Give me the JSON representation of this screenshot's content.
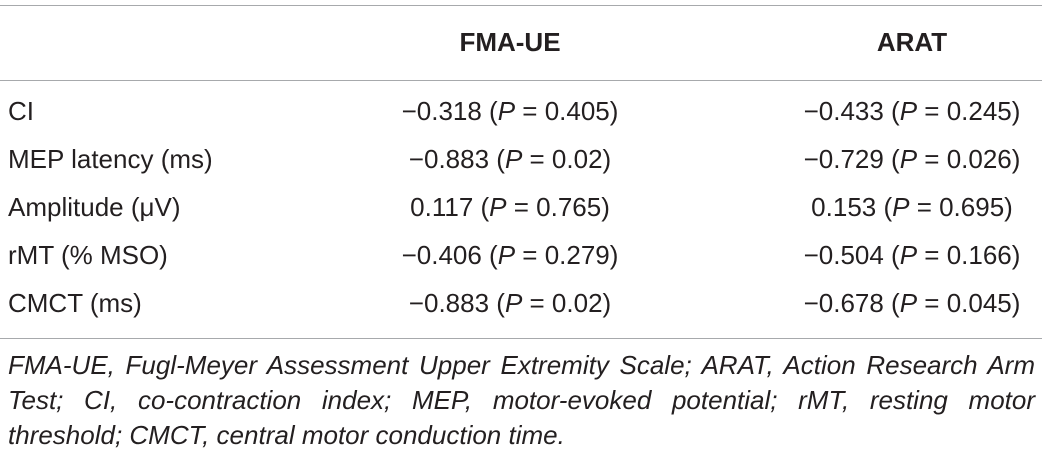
{
  "table": {
    "header": [
      "FMA-UE",
      "ARAT"
    ],
    "rows": [
      {
        "label": "CI",
        "cells": [
          [
            "−0.318 (",
            "P",
            " = 0.405)"
          ],
          [
            "−0.433 (",
            "P",
            " = 0.245)"
          ]
        ]
      },
      {
        "label": "MEP latency (ms)",
        "cells": [
          [
            "−0.883 (",
            "P",
            " = 0.02)"
          ],
          [
            "−0.729 (",
            "P",
            " = 0.026)"
          ]
        ]
      },
      {
        "label": "Amplitude (μV)",
        "cells": [
          [
            "0.117 (",
            "P",
            " = 0.765)"
          ],
          [
            "0.153 (",
            "P",
            " = 0.695)"
          ]
        ]
      },
      {
        "label": "rMT (% MSO)",
        "cells": [
          [
            "−0.406 (",
            "P",
            " = 0.279)"
          ],
          [
            "−0.504 (",
            "P",
            " = 0.166)"
          ]
        ]
      },
      {
        "label": "CMCT (ms)",
        "cells": [
          [
            "−0.883 (",
            "P",
            " = 0.02)"
          ],
          [
            "−0.678 (",
            "P",
            " = 0.045)"
          ]
        ]
      }
    ],
    "footnote": "FMA-UE, Fugl-Meyer Assessment Upper Extremity Scale; ARAT, Action Research Arm Test; CI, co-contraction index; MEP, motor-evoked potential; rMT, resting motor threshold; CMCT, central motor conduction time."
  }
}
